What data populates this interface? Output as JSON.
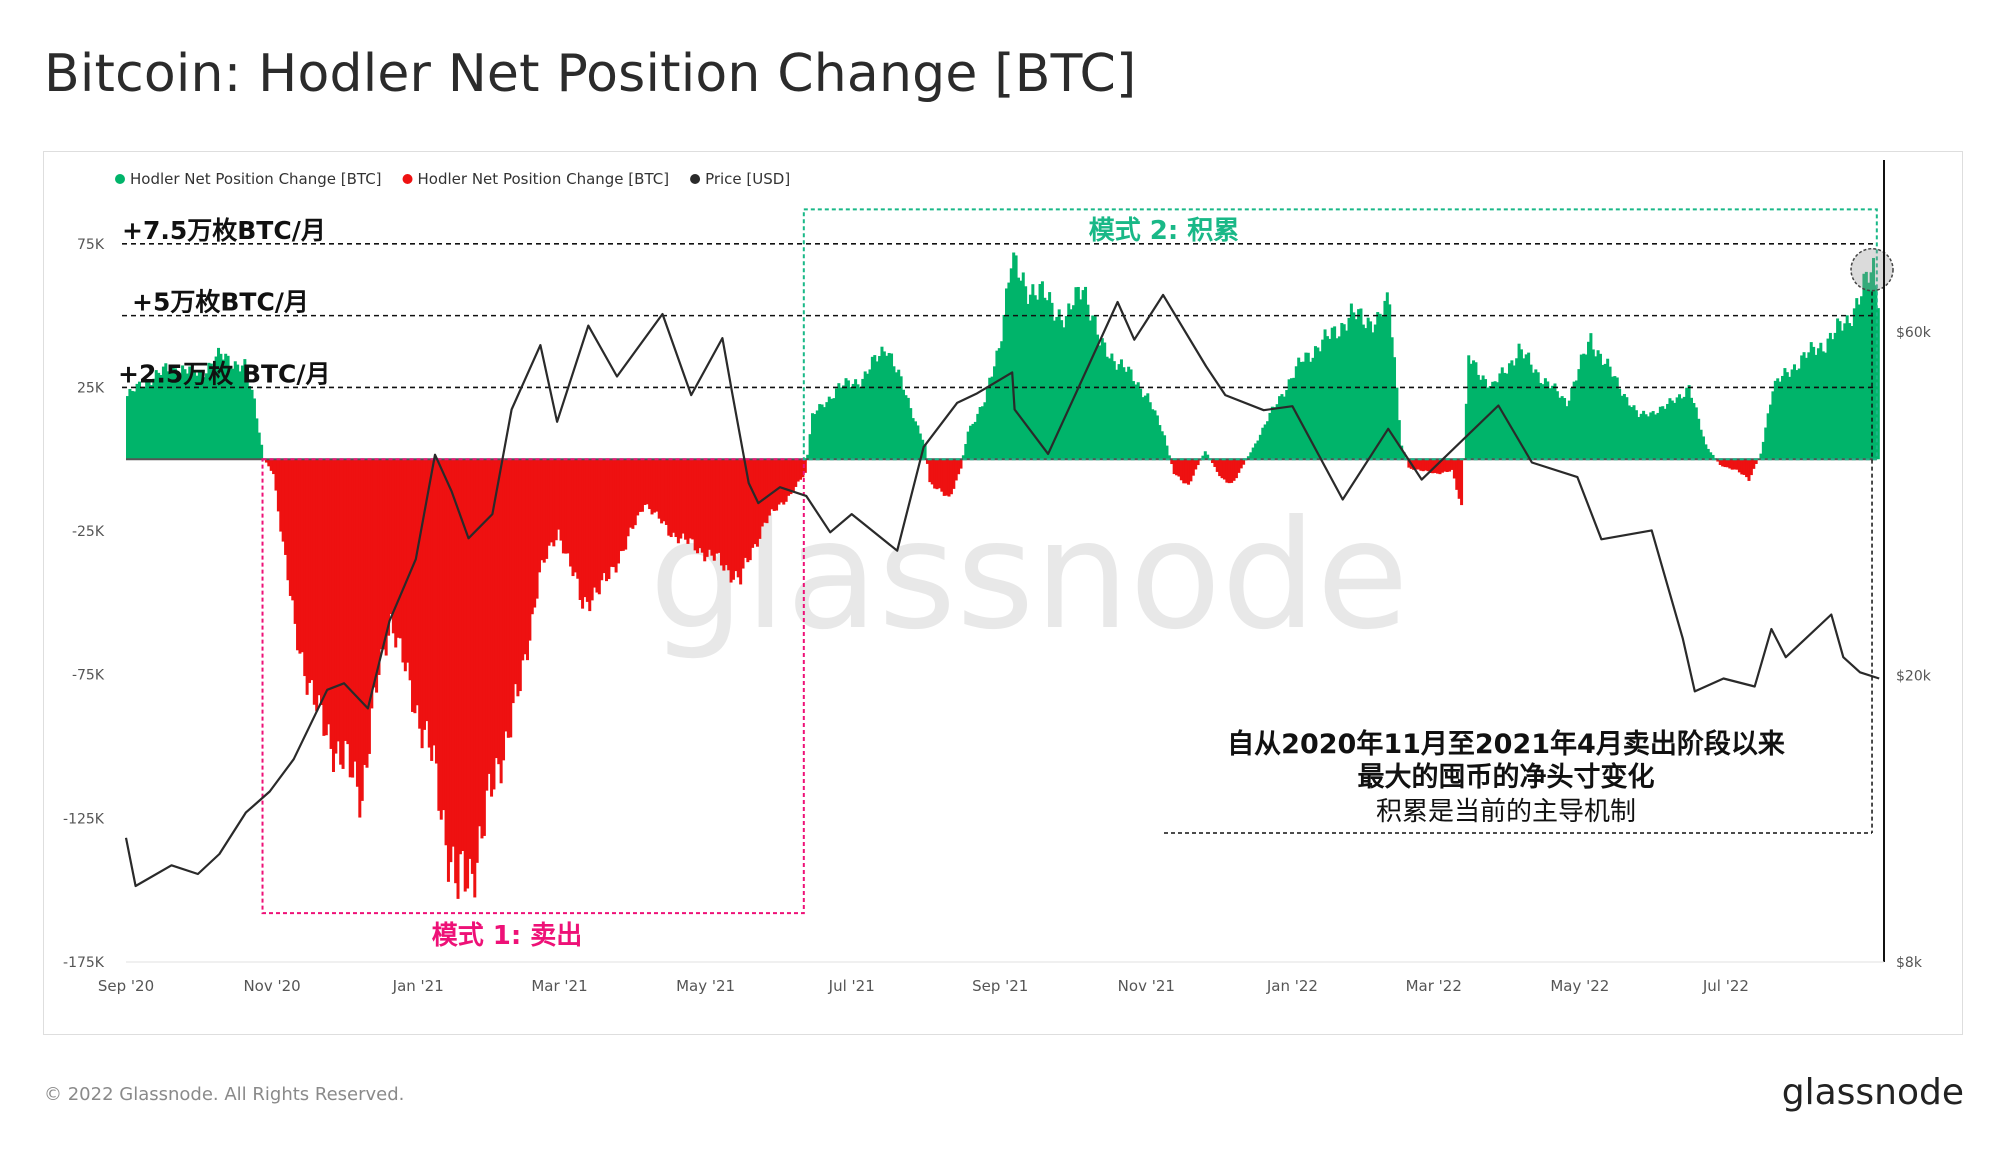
{
  "title": "Bitcoin: Hodler Net Position Change [BTC]",
  "footer": {
    "copyright": "© 2022 Glassnode. All Rights Reserved.",
    "logo": "glassnode"
  },
  "watermark": "glassnode",
  "colors": {
    "positive": "#00b46a",
    "negative": "#ee1111",
    "price": "#2a2a2a",
    "pattern_sell": "#ee1177",
    "pattern_accumulate": "#19b887",
    "reference": "#111111"
  },
  "legend": [
    {
      "label": "Hodler Net Position Change [BTC]",
      "color": "#00b46a"
    },
    {
      "label": "Hodler Net Position Change [BTC]",
      "color": "#ee1111"
    },
    {
      "label": "Price [USD]",
      "color": "#2a2a2a"
    }
  ],
  "annotations": {
    "ref_75k": "+7.5万枚BTC/月",
    "ref_50k": "+5万枚BTC/月",
    "ref_25k": "+2.5万枚 BTC/月",
    "pattern_sell": "模式 1: 卖出",
    "pattern_accumulate": "模式 2: 积累",
    "note_line1": "自从2020年11月至2021年4月卖出阶段以来",
    "note_line2": "最大的囤币的净头寸变化",
    "note_line3": "积累是当前的主导机制"
  },
  "chart_data": {
    "type": "area",
    "x_range": [
      "2020-09-01",
      "2022-09-05"
    ],
    "x_ticks": [
      {
        "date": "2020-09-01",
        "label": "Sep '20"
      },
      {
        "date": "2020-11-01",
        "label": "Nov '20"
      },
      {
        "date": "2021-01-01",
        "label": "Jan '21"
      },
      {
        "date": "2021-03-01",
        "label": "Mar '21"
      },
      {
        "date": "2021-05-01",
        "label": "May '21"
      },
      {
        "date": "2021-07-01",
        "label": "Jul '21"
      },
      {
        "date": "2021-09-01",
        "label": "Sep '21"
      },
      {
        "date": "2021-11-01",
        "label": "Nov '21"
      },
      {
        "date": "2022-01-01",
        "label": "Jan '22"
      },
      {
        "date": "2022-03-01",
        "label": "Mar '22"
      },
      {
        "date": "2022-05-01",
        "label": "May '22"
      },
      {
        "date": "2022-07-01",
        "label": "Jul '22"
      }
    ],
    "y_left": {
      "range": [
        -175000,
        100000
      ],
      "ticks": [
        {
          "value": 75000,
          "label": "75K"
        },
        {
          "value": 25000,
          "label": "25K"
        },
        {
          "value": -25000,
          "label": "-25K"
        },
        {
          "value": -75000,
          "label": "-75K"
        },
        {
          "value": -125000,
          "label": "-125K"
        },
        {
          "value": -175000,
          "label": "-175K"
        }
      ]
    },
    "y_right": {
      "scale": "log",
      "range": [
        8000,
        100000
      ],
      "ticks": [
        {
          "value": 60000,
          "label": "$60k"
        },
        {
          "value": 20000,
          "label": "$20k"
        },
        {
          "value": 8000,
          "label": "$8k"
        }
      ]
    },
    "reference_lines": [
      75000,
      50000,
      25000
    ],
    "pattern_boxes": {
      "sell": {
        "start": "2020-10-28",
        "end": "2021-06-11",
        "top": 0,
        "bottom": -158000
      },
      "accumulate": {
        "start": "2021-06-11",
        "end": "2022-09-02",
        "top": 87000,
        "bottom": 0
      }
    },
    "highlight": {
      "date": "2022-08-31",
      "value": 66000
    },
    "series": [
      {
        "name": "Hodler Net Position Change [BTC]",
        "axis": "left",
        "points": [
          [
            "2020-09-01",
            22000
          ],
          [
            "2020-09-10",
            28000
          ],
          [
            "2020-09-20",
            32000
          ],
          [
            "2020-10-01",
            30000
          ],
          [
            "2020-10-10",
            36000
          ],
          [
            "2020-10-20",
            32000
          ],
          [
            "2020-10-24",
            20000
          ],
          [
            "2020-10-28",
            0
          ],
          [
            "2020-11-01",
            -5000
          ],
          [
            "2020-11-10",
            -60000
          ],
          [
            "2020-11-20",
            -90000
          ],
          [
            "2020-11-30",
            -105000
          ],
          [
            "2020-12-08",
            -115000
          ],
          [
            "2020-12-15",
            -75000
          ],
          [
            "2020-12-20",
            -55000
          ],
          [
            "2020-12-28",
            -80000
          ],
          [
            "2021-01-05",
            -100000
          ],
          [
            "2021-01-12",
            -130000
          ],
          [
            "2021-01-17",
            -150000
          ],
          [
            "2021-01-22",
            -145000
          ],
          [
            "2021-01-30",
            -120000
          ],
          [
            "2021-02-05",
            -100000
          ],
          [
            "2021-02-12",
            -80000
          ],
          [
            "2021-02-20",
            -40000
          ],
          [
            "2021-02-28",
            -25000
          ],
          [
            "2021-03-10",
            -50000
          ],
          [
            "2021-03-18",
            -45000
          ],
          [
            "2021-03-28",
            -30000
          ],
          [
            "2021-04-05",
            -15000
          ],
          [
            "2021-04-15",
            -25000
          ],
          [
            "2021-04-25",
            -30000
          ],
          [
            "2021-05-05",
            -35000
          ],
          [
            "2021-05-15",
            -42000
          ],
          [
            "2021-05-25",
            -22000
          ],
          [
            "2021-06-05",
            -12000
          ],
          [
            "2021-06-11",
            -5000
          ],
          [
            "2021-06-14",
            15000
          ],
          [
            "2021-06-25",
            25000
          ],
          [
            "2021-07-05",
            28000
          ],
          [
            "2021-07-15",
            40000
          ],
          [
            "2021-07-25",
            18000
          ],
          [
            "2021-07-31",
            5000
          ],
          [
            "2021-08-02",
            -8000
          ],
          [
            "2021-08-10",
            -14000
          ],
          [
            "2021-08-15",
            -3000
          ],
          [
            "2021-08-18",
            10000
          ],
          [
            "2021-08-25",
            20000
          ],
          [
            "2021-08-31",
            40000
          ],
          [
            "2021-09-05",
            68000
          ],
          [
            "2021-09-12",
            60000
          ],
          [
            "2021-09-20",
            56000
          ],
          [
            "2021-09-28",
            48000
          ],
          [
            "2021-10-05",
            62000
          ],
          [
            "2021-10-12",
            40000
          ],
          [
            "2021-10-22",
            32000
          ],
          [
            "2021-11-01",
            22000
          ],
          [
            "2021-11-08",
            8000
          ],
          [
            "2021-11-12",
            -5000
          ],
          [
            "2021-11-18",
            -9000
          ],
          [
            "2021-11-25",
            3000
          ],
          [
            "2021-12-02",
            -7000
          ],
          [
            "2021-12-06",
            -9000
          ],
          [
            "2021-12-15",
            4000
          ],
          [
            "2021-12-25",
            20000
          ],
          [
            "2022-01-05",
            35000
          ],
          [
            "2022-01-15",
            42000
          ],
          [
            "2022-01-25",
            50000
          ],
          [
            "2022-02-05",
            48000
          ],
          [
            "2022-02-10",
            55000
          ],
          [
            "2022-02-15",
            5000
          ],
          [
            "2022-02-18",
            -3000
          ],
          [
            "2022-03-01",
            -5000
          ],
          [
            "2022-03-08",
            -4000
          ],
          [
            "2022-03-12",
            -17000
          ],
          [
            "2022-03-15",
            35000
          ],
          [
            "2022-03-25",
            25000
          ],
          [
            "2022-04-05",
            38000
          ],
          [
            "2022-04-15",
            28000
          ],
          [
            "2022-04-25",
            20000
          ],
          [
            "2022-05-05",
            42000
          ],
          [
            "2022-05-15",
            28000
          ],
          [
            "2022-05-25",
            15000
          ],
          [
            "2022-06-05",
            18000
          ],
          [
            "2022-06-15",
            25000
          ],
          [
            "2022-06-22",
            5000
          ],
          [
            "2022-06-28",
            -2000
          ],
          [
            "2022-07-05",
            -4000
          ],
          [
            "2022-07-10",
            -7000
          ],
          [
            "2022-07-15",
            2000
          ],
          [
            "2022-07-20",
            25000
          ],
          [
            "2022-08-01",
            35000
          ],
          [
            "2022-08-10",
            40000
          ],
          [
            "2022-08-20",
            48000
          ],
          [
            "2022-08-26",
            58000
          ],
          [
            "2022-08-31",
            66000
          ],
          [
            "2022-09-02",
            58000
          ]
        ]
      },
      {
        "name": "Price [USD]",
        "axis": "right",
        "points": [
          [
            "2020-09-01",
            11900
          ],
          [
            "2020-09-05",
            10200
          ],
          [
            "2020-09-20",
            10900
          ],
          [
            "2020-10-01",
            10600
          ],
          [
            "2020-10-10",
            11300
          ],
          [
            "2020-10-21",
            12900
          ],
          [
            "2020-10-31",
            13800
          ],
          [
            "2020-11-10",
            15300
          ],
          [
            "2020-11-24",
            19100
          ],
          [
            "2020-12-01",
            19500
          ],
          [
            "2020-12-11",
            18000
          ],
          [
            "2020-12-20",
            23800
          ],
          [
            "2020-12-31",
            29000
          ],
          [
            "2021-01-08",
            40500
          ],
          [
            "2021-01-15",
            36000
          ],
          [
            "2021-01-22",
            31000
          ],
          [
            "2021-02-01",
            33500
          ],
          [
            "2021-02-09",
            46800
          ],
          [
            "2021-02-21",
            57500
          ],
          [
            "2021-02-28",
            45000
          ],
          [
            "2021-03-13",
            61200
          ],
          [
            "2021-03-25",
            52000
          ],
          [
            "2021-04-13",
            63500
          ],
          [
            "2021-04-25",
            49000
          ],
          [
            "2021-05-08",
            58800
          ],
          [
            "2021-05-12",
            49500
          ],
          [
            "2021-05-19",
            37000
          ],
          [
            "2021-05-23",
            34700
          ],
          [
            "2021-06-01",
            36500
          ],
          [
            "2021-06-12",
            35500
          ],
          [
            "2021-06-22",
            31600
          ],
          [
            "2021-07-01",
            33500
          ],
          [
            "2021-07-20",
            29800
          ],
          [
            "2021-07-31",
            41500
          ],
          [
            "2021-08-14",
            47800
          ],
          [
            "2021-08-22",
            49200
          ],
          [
            "2021-09-06",
            52700
          ],
          [
            "2021-09-07",
            46800
          ],
          [
            "2021-09-21",
            40600
          ],
          [
            "2021-10-01",
            48000
          ],
          [
            "2021-10-20",
            66000
          ],
          [
            "2021-10-27",
            58500
          ],
          [
            "2021-11-08",
            67500
          ],
          [
            "2021-11-26",
            53700
          ],
          [
            "2021-12-04",
            49000
          ],
          [
            "2021-12-20",
            46700
          ],
          [
            "2022-01-01",
            47300
          ],
          [
            "2022-01-22",
            35100
          ],
          [
            "2022-02-10",
            44000
          ],
          [
            "2022-02-24",
            37400
          ],
          [
            "2022-03-28",
            47400
          ],
          [
            "2022-04-11",
            39500
          ],
          [
            "2022-04-30",
            37700
          ],
          [
            "2022-05-10",
            30900
          ],
          [
            "2022-05-31",
            31800
          ],
          [
            "2022-06-13",
            22500
          ],
          [
            "2022-06-18",
            19000
          ],
          [
            "2022-06-30",
            19800
          ],
          [
            "2022-07-13",
            19300
          ],
          [
            "2022-07-20",
            23200
          ],
          [
            "2022-07-26",
            21200
          ],
          [
            "2022-08-14",
            24300
          ],
          [
            "2022-08-19",
            21200
          ],
          [
            "2022-08-26",
            20200
          ],
          [
            "2022-09-03",
            19800
          ]
        ]
      }
    ]
  }
}
